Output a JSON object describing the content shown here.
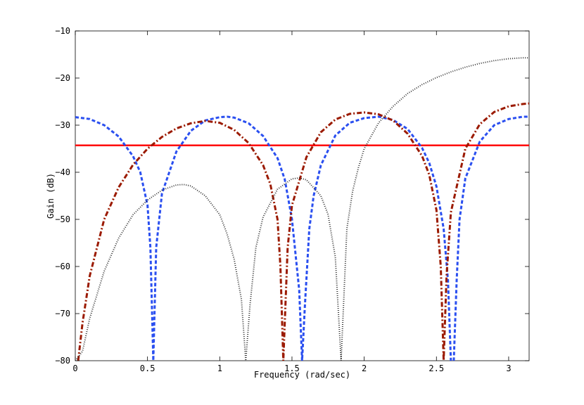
{
  "chart_data": {
    "type": "line",
    "title": "",
    "xlabel": "Frequency (rad/sec)",
    "ylabel": "Gain (dB)",
    "xlim": [
      0,
      3.14159
    ],
    "ylim": [
      -80,
      -10
    ],
    "grid": false,
    "legend": "none",
    "x_ticks": [
      0,
      0.5,
      1,
      1.5,
      2,
      2.5,
      3
    ],
    "x_tick_labels": [
      "0",
      "0.5",
      "1",
      "1.5",
      "2",
      "2.5",
      "3"
    ],
    "y_ticks": [
      -80,
      -70,
      -60,
      -50,
      -40,
      -30,
      -20,
      -10
    ],
    "y_tick_labels": [
      "−80",
      "−70",
      "−60",
      "−50",
      "−40",
      "−30",
      "−20",
      "−10"
    ],
    "series": [
      {
        "color": "#ff0000",
        "style": "solid",
        "x": [
          0,
          3.14159
        ],
        "y": [
          -34.3,
          -34.3
        ]
      },
      {
        "color": "#2a4ff0",
        "style": "dashed",
        "x": [
          0,
          0.1,
          0.2,
          0.3,
          0.4,
          0.45,
          0.5,
          0.52,
          0.54,
          0.56,
          0.6,
          0.7,
          0.8,
          0.9,
          1.0,
          1.05,
          1.1,
          1.2,
          1.3,
          1.4,
          1.45,
          1.5,
          1.55,
          1.57,
          1.59,
          1.62,
          1.65,
          1.7,
          1.8,
          1.9,
          2.0,
          2.1,
          2.2,
          2.3,
          2.4,
          2.45,
          2.5,
          2.55,
          2.58,
          2.6,
          2.62,
          2.64,
          2.66,
          2.7,
          2.8,
          2.9,
          3.0,
          3.1,
          3.14159
        ],
        "y": [
          -28.3,
          -28.7,
          -30.0,
          -32.4,
          -36.6,
          -40.0,
          -47.0,
          -56.0,
          -80.0,
          -56.0,
          -44.5,
          -35.6,
          -31.2,
          -29.0,
          -28.3,
          -28.2,
          -28.4,
          -29.6,
          -32.3,
          -37.0,
          -41.5,
          -50.0,
          -65.0,
          -80.0,
          -68.0,
          -52.0,
          -45.0,
          -38.5,
          -32.2,
          -29.5,
          -28.5,
          -28.2,
          -28.9,
          -30.8,
          -34.8,
          -38.0,
          -43.0,
          -52.0,
          -63.0,
          -80.0,
          -80.0,
          -63.0,
          -50.0,
          -41.3,
          -33.5,
          -30.0,
          -28.7,
          -28.2,
          -28.2
        ]
      },
      {
        "color": "#9b1a00",
        "style": "dashdot",
        "x": [
          0.02,
          0.05,
          0.1,
          0.2,
          0.3,
          0.4,
          0.5,
          0.6,
          0.7,
          0.8,
          0.9,
          1.0,
          1.1,
          1.2,
          1.3,
          1.35,
          1.4,
          1.42,
          1.44,
          1.47,
          1.5,
          1.6,
          1.7,
          1.8,
          1.9,
          2.0,
          2.1,
          2.2,
          2.3,
          2.4,
          2.45,
          2.5,
          2.53,
          2.55,
          2.57,
          2.6,
          2.7,
          2.8,
          2.9,
          3.0,
          3.1,
          3.14159
        ],
        "y": [
          -80.0,
          -72.0,
          -62.0,
          -50.0,
          -43.2,
          -38.4,
          -35.0,
          -32.5,
          -30.7,
          -29.6,
          -29.1,
          -29.5,
          -31.0,
          -33.8,
          -38.5,
          -42.5,
          -50.0,
          -60.0,
          -80.0,
          -56.0,
          -47.0,
          -36.8,
          -31.5,
          -28.8,
          -27.6,
          -27.3,
          -27.7,
          -29.0,
          -31.8,
          -36.5,
          -40.5,
          -48.0,
          -60.0,
          -80.0,
          -62.0,
          -48.5,
          -35.0,
          -29.8,
          -27.2,
          -26.0,
          -25.5,
          -25.4
        ]
      },
      {
        "color": "#333333",
        "style": "dotted",
        "x": [
          0,
          0.05,
          0.1,
          0.2,
          0.3,
          0.4,
          0.5,
          0.6,
          0.7,
          0.75,
          0.8,
          0.9,
          1.0,
          1.05,
          1.1,
          1.15,
          1.18,
          1.21,
          1.25,
          1.3,
          1.4,
          1.5,
          1.55,
          1.6,
          1.7,
          1.75,
          1.8,
          1.84,
          1.88,
          1.92,
          1.96,
          2.0,
          2.1,
          2.2,
          2.3,
          2.4,
          2.5,
          2.6,
          2.7,
          2.8,
          2.9,
          3.0,
          3.1,
          3.14159
        ],
        "y": [
          -80.0,
          -78.0,
          -71.0,
          -61.0,
          -54.0,
          -49.0,
          -45.9,
          -43.8,
          -42.7,
          -42.6,
          -42.9,
          -45.0,
          -49.0,
          -53.0,
          -58.5,
          -67.0,
          -80.0,
          -68.0,
          -56.0,
          -49.5,
          -43.6,
          -41.4,
          -41.2,
          -41.6,
          -45.0,
          -49.0,
          -58.0,
          -80.0,
          -52.0,
          -44.0,
          -39.0,
          -35.0,
          -29.5,
          -26.0,
          -23.3,
          -21.4,
          -19.9,
          -18.7,
          -17.7,
          -16.9,
          -16.3,
          -15.9,
          -15.7,
          -15.7
        ]
      }
    ]
  }
}
